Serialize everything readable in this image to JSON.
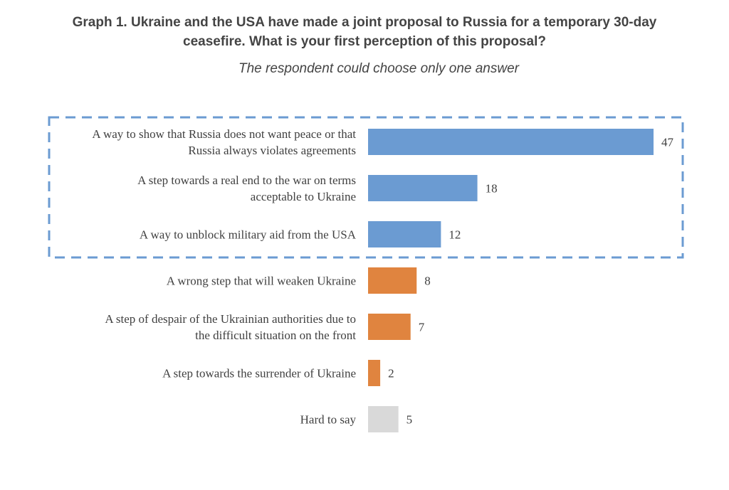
{
  "chart_data": {
    "type": "bar",
    "orientation": "horizontal",
    "title_lines": [
      "Graph 1. Ukraine and the USA have made a joint proposal to Russia for a temporary 30-day",
      "ceasefire. What is your first perception of this proposal?"
    ],
    "subtitle": "The respondent could choose only one answer",
    "categories": [
      [
        "A way to show that Russia does not want peace or that",
        "Russia always violates agreements"
      ],
      [
        "A step towards a real end to the war on terms",
        "acceptable to Ukraine"
      ],
      [
        "A way to unblock military aid from the USA"
      ],
      [
        "A wrong step that will weaken Ukraine"
      ],
      [
        "A step of despair of the Ukrainian authorities due to",
        "the difficult situation on the front"
      ],
      [
        "A step towards the surrender of Ukraine"
      ],
      [
        "Hard to say"
      ]
    ],
    "values": [
      47,
      18,
      12,
      8,
      7,
      2,
      5
    ],
    "colors": [
      "#6b9bd2",
      "#6b9bd2",
      "#6b9bd2",
      "#e0843f",
      "#e0843f",
      "#e0843f",
      "#d9d9d9"
    ],
    "highlight": {
      "groups": [
        0,
        1,
        2
      ],
      "style": "dashed",
      "color": "#6b9bd2"
    },
    "xlim": [
      0,
      47
    ],
    "grid": false,
    "legend": "none"
  }
}
